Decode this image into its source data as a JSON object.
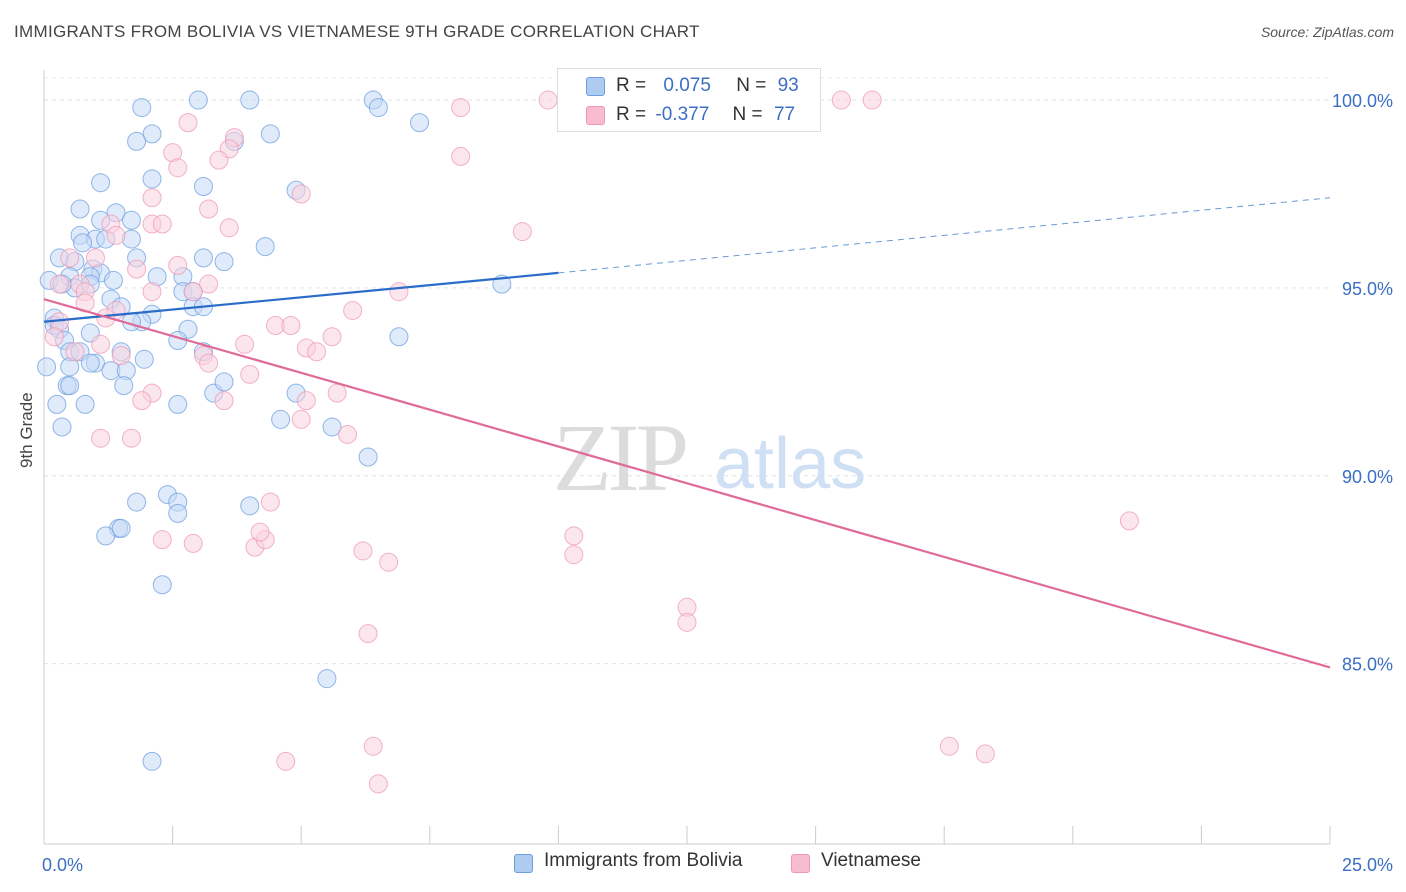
{
  "header": {
    "title": "IMMIGRANTS FROM BOLIVIA VS VIETNAMESE 9TH GRADE CORRELATION CHART",
    "source": "Source: ZipAtlas.com"
  },
  "watermark": {
    "zip": "ZIP",
    "atlas": "atlas"
  },
  "stats": [
    {
      "r_label": "R =",
      "r_value": "0.075",
      "n_label": "N =",
      "n_value": "93",
      "color": "#aecbf0"
    },
    {
      "r_label": "R =",
      "r_value": "-0.377",
      "n_label": "N =",
      "n_value": "77",
      "color": "#f7bcd0"
    }
  ],
  "legend": [
    {
      "label": "Immigrants from Bolivia",
      "color": "#aecbf0"
    },
    {
      "label": "Vietnamese",
      "color": "#f7bcd0"
    }
  ],
  "chart_data": {
    "type": "scatter",
    "title": "IMMIGRANTS FROM BOLIVIA VS VIETNAMESE 9TH GRADE CORRELATION CHART",
    "ylabel": "9th Grade",
    "xlabel": "",
    "xlim": [
      0,
      25
    ],
    "ylim": [
      80.2,
      100.8
    ],
    "x_tick_labels": [
      "0.0%",
      "25.0%"
    ],
    "y_ticks": [
      85,
      90,
      95,
      100
    ],
    "y_tick_labels": [
      "85.0%",
      "90.0%",
      "95.0%",
      "100.0%"
    ],
    "grid": true,
    "series": [
      {
        "name": "Immigrants from Bolivia",
        "color": "#6d9fe0",
        "fill": "#c4d9f5",
        "trend": {
          "x0": 0,
          "y0": 94.1,
          "x1": 10,
          "y1": 95.4,
          "dash_to_x": 25,
          "dash_to_y": 97.4,
          "color": "#2a6cc8"
        },
        "points": [
          [
            1.9,
            99.8
          ],
          [
            3.0,
            100.0
          ],
          [
            4.0,
            100.0
          ],
          [
            6.4,
            100.0
          ],
          [
            6.5,
            99.8
          ],
          [
            7.3,
            99.4
          ],
          [
            2.1,
            99.1
          ],
          [
            1.8,
            98.9
          ],
          [
            3.7,
            98.9
          ],
          [
            4.4,
            99.1
          ],
          [
            2.1,
            97.9
          ],
          [
            3.1,
            97.7
          ],
          [
            1.1,
            97.8
          ],
          [
            4.9,
            97.6
          ],
          [
            0.7,
            97.1
          ],
          [
            1.4,
            97.0
          ],
          [
            1.1,
            96.8
          ],
          [
            1.7,
            96.8
          ],
          [
            0.7,
            96.4
          ],
          [
            1.0,
            96.3
          ],
          [
            1.2,
            96.3
          ],
          [
            1.7,
            96.3
          ],
          [
            0.75,
            96.2
          ],
          [
            4.3,
            96.1
          ],
          [
            0.3,
            95.8
          ],
          [
            0.6,
            95.7
          ],
          [
            1.8,
            95.8
          ],
          [
            3.1,
            95.8
          ],
          [
            3.5,
            95.7
          ],
          [
            0.95,
            95.5
          ],
          [
            1.1,
            95.4
          ],
          [
            0.1,
            95.2
          ],
          [
            0.5,
            95.3
          ],
          [
            0.9,
            95.3
          ],
          [
            1.35,
            95.2
          ],
          [
            2.2,
            95.3
          ],
          [
            2.7,
            95.3
          ],
          [
            0.6,
            95.0
          ],
          [
            0.9,
            95.1
          ],
          [
            2.7,
            94.9
          ],
          [
            2.9,
            94.9
          ],
          [
            8.9,
            95.1
          ],
          [
            1.3,
            94.7
          ],
          [
            1.5,
            94.5
          ],
          [
            2.9,
            94.5
          ],
          [
            3.1,
            94.5
          ],
          [
            0.2,
            94.2
          ],
          [
            2.1,
            94.3
          ],
          [
            1.9,
            94.1
          ],
          [
            0.2,
            94.0
          ],
          [
            0.3,
            93.9
          ],
          [
            0.9,
            93.8
          ],
          [
            2.8,
            93.9
          ],
          [
            6.9,
            93.7
          ],
          [
            0.4,
            93.6
          ],
          [
            2.6,
            93.6
          ],
          [
            0.5,
            93.3
          ],
          [
            0.7,
            93.3
          ],
          [
            1.5,
            93.3
          ],
          [
            3.1,
            93.3
          ],
          [
            0.05,
            92.9
          ],
          [
            0.5,
            92.9
          ],
          [
            1.0,
            93.0
          ],
          [
            1.95,
            93.1
          ],
          [
            1.3,
            92.8
          ],
          [
            1.6,
            92.8
          ],
          [
            0.45,
            92.4
          ],
          [
            0.5,
            92.4
          ],
          [
            1.55,
            92.4
          ],
          [
            3.3,
            92.2
          ],
          [
            4.9,
            92.2
          ],
          [
            0.25,
            91.9
          ],
          [
            0.8,
            91.9
          ],
          [
            2.6,
            91.9
          ],
          [
            0.35,
            91.3
          ],
          [
            5.6,
            91.3
          ],
          [
            6.3,
            90.5
          ],
          [
            1.8,
            89.3
          ],
          [
            2.4,
            89.5
          ],
          [
            2.6,
            89.3
          ],
          [
            2.6,
            89.0
          ],
          [
            4.0,
            89.2
          ],
          [
            1.45,
            88.6
          ],
          [
            1.2,
            88.4
          ],
          [
            2.3,
            87.1
          ],
          [
            5.5,
            84.6
          ],
          [
            2.1,
            82.4
          ],
          [
            1.5,
            88.6
          ],
          [
            0.9,
            93.0
          ],
          [
            3.5,
            92.5
          ],
          [
            4.6,
            91.5
          ],
          [
            1.7,
            94.1
          ],
          [
            0.35,
            95.1
          ]
        ]
      },
      {
        "name": "Vietnamese",
        "color": "#ef98b5",
        "fill": "#f9d2df",
        "trend": {
          "x0": 0,
          "y0": 94.7,
          "x1": 25,
          "y1": 84.9,
          "color": "#e06a98"
        },
        "points": [
          [
            9.8,
            100.0
          ],
          [
            15.5,
            100.0
          ],
          [
            16.1,
            100.0
          ],
          [
            8.1,
            99.8
          ],
          [
            2.8,
            99.4
          ],
          [
            3.7,
            99.0
          ],
          [
            3.6,
            98.7
          ],
          [
            2.5,
            98.6
          ],
          [
            3.4,
            98.4
          ],
          [
            2.6,
            98.2
          ],
          [
            8.1,
            98.5
          ],
          [
            5.0,
            97.5
          ],
          [
            2.1,
            97.4
          ],
          [
            3.2,
            97.1
          ],
          [
            9.3,
            96.5
          ],
          [
            2.1,
            96.7
          ],
          [
            2.3,
            96.7
          ],
          [
            3.6,
            96.6
          ],
          [
            1.3,
            96.7
          ],
          [
            1.4,
            96.4
          ],
          [
            0.5,
            95.8
          ],
          [
            1.0,
            95.8
          ],
          [
            2.6,
            95.6
          ],
          [
            1.8,
            95.5
          ],
          [
            0.3,
            95.1
          ],
          [
            0.7,
            95.1
          ],
          [
            3.2,
            95.1
          ],
          [
            0.8,
            94.9
          ],
          [
            2.1,
            94.9
          ],
          [
            2.9,
            94.9
          ],
          [
            6.9,
            94.9
          ],
          [
            1.4,
            94.4
          ],
          [
            0.8,
            94.6
          ],
          [
            6.0,
            94.4
          ],
          [
            1.2,
            94.2
          ],
          [
            4.5,
            94.0
          ],
          [
            4.8,
            94.0
          ],
          [
            0.3,
            94.1
          ],
          [
            5.1,
            93.4
          ],
          [
            5.3,
            93.3
          ],
          [
            1.1,
            93.5
          ],
          [
            3.9,
            93.5
          ],
          [
            5.6,
            93.7
          ],
          [
            3.1,
            93.2
          ],
          [
            0.2,
            93.7
          ],
          [
            1.5,
            93.2
          ],
          [
            3.2,
            93.0
          ],
          [
            0.6,
            93.3
          ],
          [
            4.0,
            92.7
          ],
          [
            2.1,
            92.2
          ],
          [
            1.9,
            92.0
          ],
          [
            3.5,
            92.0
          ],
          [
            5.1,
            92.0
          ],
          [
            5.7,
            92.2
          ],
          [
            5.0,
            91.5
          ],
          [
            1.7,
            91.0
          ],
          [
            1.1,
            91.0
          ],
          [
            5.9,
            91.1
          ],
          [
            4.4,
            89.3
          ],
          [
            2.3,
            88.3
          ],
          [
            2.9,
            88.2
          ],
          [
            4.1,
            88.1
          ],
          [
            4.3,
            88.3
          ],
          [
            4.2,
            88.5
          ],
          [
            6.2,
            88.0
          ],
          [
            6.7,
            87.7
          ],
          [
            10.3,
            88.4
          ],
          [
            10.3,
            87.9
          ],
          [
            12.5,
            86.5
          ],
          [
            12.5,
            86.1
          ],
          [
            21.1,
            88.8
          ],
          [
            6.3,
            85.8
          ],
          [
            4.7,
            82.4
          ],
          [
            6.4,
            82.8
          ],
          [
            6.5,
            81.8
          ],
          [
            17.6,
            82.8
          ],
          [
            18.3,
            82.6
          ]
        ]
      }
    ]
  }
}
